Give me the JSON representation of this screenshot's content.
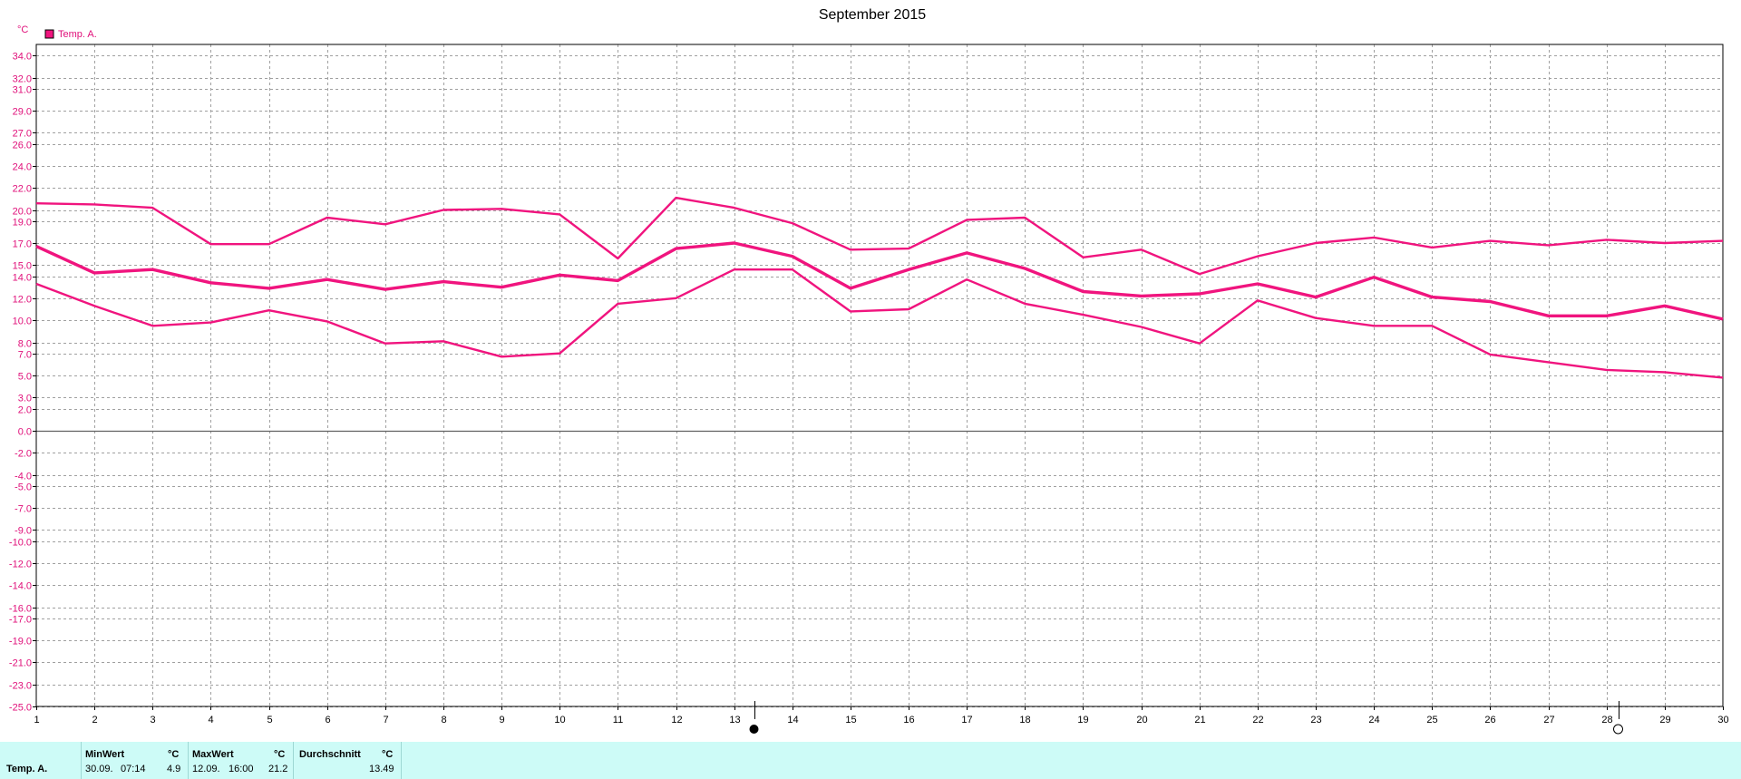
{
  "chart_data": {
    "type": "line",
    "title": "September 2015",
    "y_unit": "°C",
    "legend": [
      {
        "name": "Temp. A.",
        "color": "#f0147e"
      }
    ],
    "x": [
      1,
      2,
      3,
      4,
      5,
      6,
      7,
      8,
      9,
      10,
      11,
      12,
      13,
      14,
      15,
      16,
      17,
      18,
      19,
      20,
      21,
      22,
      23,
      24,
      25,
      26,
      27,
      28,
      29,
      30
    ],
    "xlim": [
      1,
      30
    ],
    "ylim": [
      -25.0,
      35.0
    ],
    "y_ticks": [
      "34.0",
      "32.0",
      "31.0",
      "29.0",
      "27.0",
      "26.0",
      "24.0",
      "22.0",
      "20.0",
      "19.0",
      "17.0",
      "15.0",
      "14.0",
      "12.0",
      "10.0",
      "8.0",
      "7.0",
      "5.0",
      "3.0",
      "2.0",
      "0.0",
      "-2.0",
      "-4.0",
      "-5.0",
      "-7.0",
      "-9.0",
      "-10.0",
      "-12.0",
      "-14.0",
      "-16.0",
      "-17.0",
      "-19.0",
      "-21.0",
      "-23.0",
      "-25.0"
    ],
    "grid": true,
    "color": "#f0147e",
    "series": [
      {
        "values": [
          20.6,
          20.5,
          20.2,
          16.9,
          16.9,
          19.3,
          18.7,
          20.0,
          20.1,
          19.6,
          15.6,
          21.1,
          20.2,
          18.8,
          16.4,
          16.5,
          19.1,
          19.3,
          15.7,
          16.4,
          14.2,
          15.8,
          17.0,
          17.5,
          16.6,
          17.2,
          16.8,
          17.3,
          17.0,
          17.2
        ]
      },
      {
        "values": [
          16.7,
          14.3,
          14.6,
          13.4,
          12.9,
          13.7,
          12.8,
          13.5,
          13.0,
          14.1,
          13.6,
          16.5,
          17.0,
          15.8,
          12.9,
          14.6,
          16.1,
          14.7,
          12.6,
          12.2,
          12.4,
          13.3,
          12.1,
          13.9,
          12.1,
          11.7,
          10.4,
          10.4,
          11.3,
          10.1
        ]
      },
      {
        "values": [
          13.3,
          11.3,
          9.5,
          9.8,
          10.9,
          9.9,
          7.9,
          8.1,
          6.7,
          7.0,
          11.5,
          12.0,
          14.6,
          14.6,
          10.8,
          11.0,
          13.7,
          11.5,
          10.5,
          9.4,
          7.9,
          11.8,
          10.2,
          9.5,
          9.5,
          6.9,
          6.2,
          5.5,
          5.3,
          4.8
        ]
      }
    ]
  },
  "markers": {
    "full_moon_day": 13,
    "new_moon_day": 28
  },
  "stats": {
    "row_label": "Temp. A.",
    "min_header": "MinWert",
    "min_unit": "°C",
    "min_date": "30.09.",
    "min_time": "07:14",
    "min_value": "4.9",
    "max_header": "MaxWert",
    "max_unit": "°C",
    "max_date": "12.09.",
    "max_time": "16:00",
    "max_value": "21.2",
    "avg_header": "Durchschnitt",
    "avg_unit": "°C",
    "avg_value": "13.49"
  }
}
